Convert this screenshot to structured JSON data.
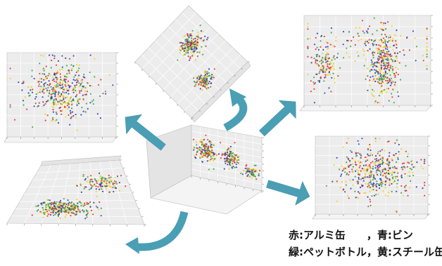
{
  "legend": {
    "line1": "赤:アルミ缶　　，青:ビン",
    "line2": "緑:ペットボトル，黄:スチール缶"
  },
  "colors": {
    "red": "#e8332a",
    "blue": "#2f3fb5",
    "green": "#3aa64a",
    "yellow": "#f0d21c",
    "arrow": "#4a9fb5",
    "pane": "#ececec",
    "grid": "#cfcfcf"
  },
  "chart_data": [
    {
      "type": "scatter",
      "view": "center 3D perspective",
      "clusters": 3,
      "series": [
        {
          "color": "red"
        },
        {
          "color": "blue"
        },
        {
          "color": "green"
        },
        {
          "color": "yellow"
        }
      ]
    },
    {
      "type": "scatter",
      "view": "upper-left projection",
      "clusters": 1
    },
    {
      "type": "scatter",
      "view": "top-middle rotated (diamond)",
      "clusters": 2
    },
    {
      "type": "scatter",
      "view": "upper-right projection",
      "clusters": 3
    },
    {
      "type": "scatter",
      "view": "lower-right projection",
      "clusters": 1
    },
    {
      "type": "scatter",
      "view": "lower-left tilted floor view",
      "clusters": 3
    }
  ]
}
